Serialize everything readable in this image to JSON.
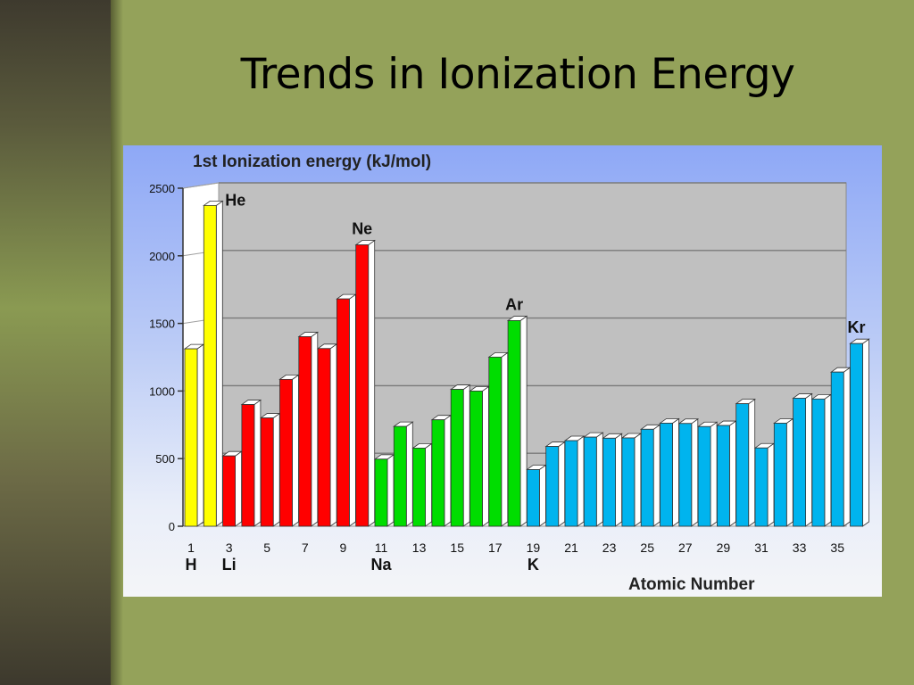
{
  "slide": {
    "title": "Trends in Ionization Energy"
  },
  "colors": {
    "background": "#94a25a",
    "plot_area": "#c0c0c0",
    "period1": "#ffff00",
    "period2": "#ff0000",
    "period3": "#00dd00",
    "period4": "#00b4ee"
  },
  "chart_data": {
    "type": "bar",
    "title": "1st Ionization energy (kJ/mol)",
    "xlabel": "Atomic Number",
    "ylabel": "",
    "ylim": [
      0,
      2500
    ],
    "yticks": [
      0,
      500,
      1000,
      1500,
      2000,
      2500
    ],
    "grid": true,
    "x_tick_labels": [
      "1",
      "3",
      "5",
      "7",
      "9",
      "11",
      "13",
      "15",
      "17",
      "19",
      "21",
      "23",
      "25",
      "27",
      "29",
      "31",
      "33",
      "35"
    ],
    "element_labels_bottom": [
      {
        "atomic_number": 1,
        "symbol": "H"
      },
      {
        "atomic_number": 3,
        "symbol": "Li"
      },
      {
        "atomic_number": 11,
        "symbol": "Na"
      },
      {
        "atomic_number": 19,
        "symbol": "K"
      }
    ],
    "element_labels_top": [
      {
        "atomic_number": 2,
        "symbol": "He"
      },
      {
        "atomic_number": 10,
        "symbol": "Ne"
      },
      {
        "atomic_number": 18,
        "symbol": "Ar"
      },
      {
        "atomic_number": 36,
        "symbol": "Kr"
      }
    ],
    "atomic_numbers": [
      1,
      2,
      3,
      4,
      5,
      6,
      7,
      8,
      9,
      10,
      11,
      12,
      13,
      14,
      15,
      16,
      17,
      18,
      19,
      20,
      21,
      22,
      23,
      24,
      25,
      26,
      27,
      28,
      29,
      30,
      31,
      32,
      33,
      34,
      35,
      36
    ],
    "values": [
      1312,
      2372,
      520,
      900,
      801,
      1086,
      1402,
      1314,
      1681,
      2081,
      496,
      738,
      578,
      787,
      1012,
      1000,
      1251,
      1521,
      419,
      590,
      633,
      659,
      651,
      653,
      717,
      762,
      760,
      737,
      745,
      906,
      579,
      762,
      947,
      941,
      1140,
      1351
    ],
    "period_groups": [
      {
        "from": 1,
        "to": 2,
        "color": "#ffff00"
      },
      {
        "from": 3,
        "to": 10,
        "color": "#ff0000"
      },
      {
        "from": 11,
        "to": 18,
        "color": "#00dd00"
      },
      {
        "from": 19,
        "to": 36,
        "color": "#00b4ee"
      }
    ]
  }
}
